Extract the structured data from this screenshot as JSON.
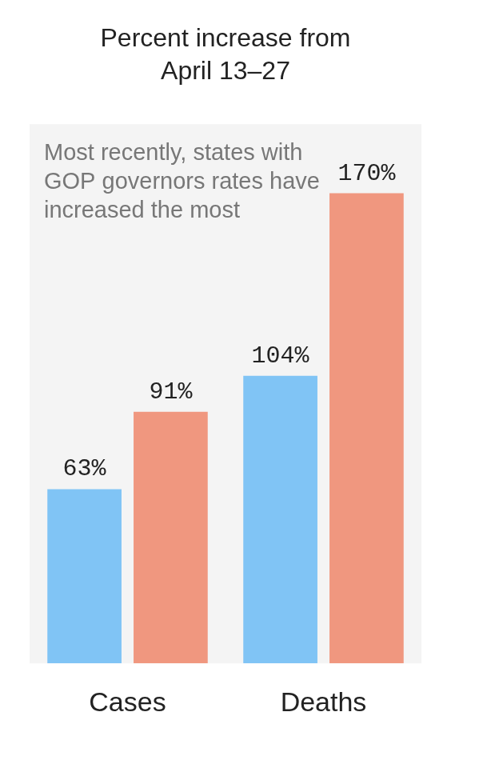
{
  "chart_data": {
    "type": "bar",
    "title": "Percent increase from April 13–27",
    "annotations": [
      "Most recently, states with GOP governors rates have increased the most"
    ],
    "categories": [
      "Cases",
      "Deaths"
    ],
    "series": [
      {
        "color": "#80c4f5",
        "values": [
          63,
          104
        ],
        "value_labels": [
          "63%",
          "104%"
        ]
      },
      {
        "color": "#f0977f",
        "values": [
          91,
          170
        ],
        "value_labels": [
          "91%",
          "170%"
        ]
      }
    ],
    "ylim": [
      0,
      195
    ],
    "grid": false,
    "data_labels": true,
    "tick_labels": "x"
  }
}
